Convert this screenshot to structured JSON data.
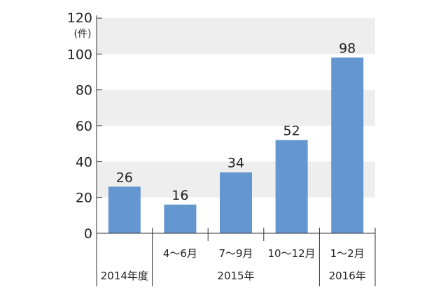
{
  "chart_data": {
    "type": "bar",
    "y_unit": "(件)",
    "ylim": [
      0,
      120
    ],
    "y_ticks": [
      "0",
      "20",
      "40",
      "60",
      "80",
      "100",
      "120"
    ],
    "categories": [
      "",
      "4〜6月",
      "7〜9月",
      "10〜12月",
      "1〜2月"
    ],
    "groups": [
      "2014年度",
      "2015年",
      "2016年"
    ],
    "values": [
      26,
      16,
      34,
      52,
      98
    ],
    "data_labels": [
      "26",
      "16",
      "34",
      "52",
      "98"
    ],
    "bar_color": "#6496cf",
    "band_color": "#eeeeee",
    "grid": "horizontal bands"
  }
}
